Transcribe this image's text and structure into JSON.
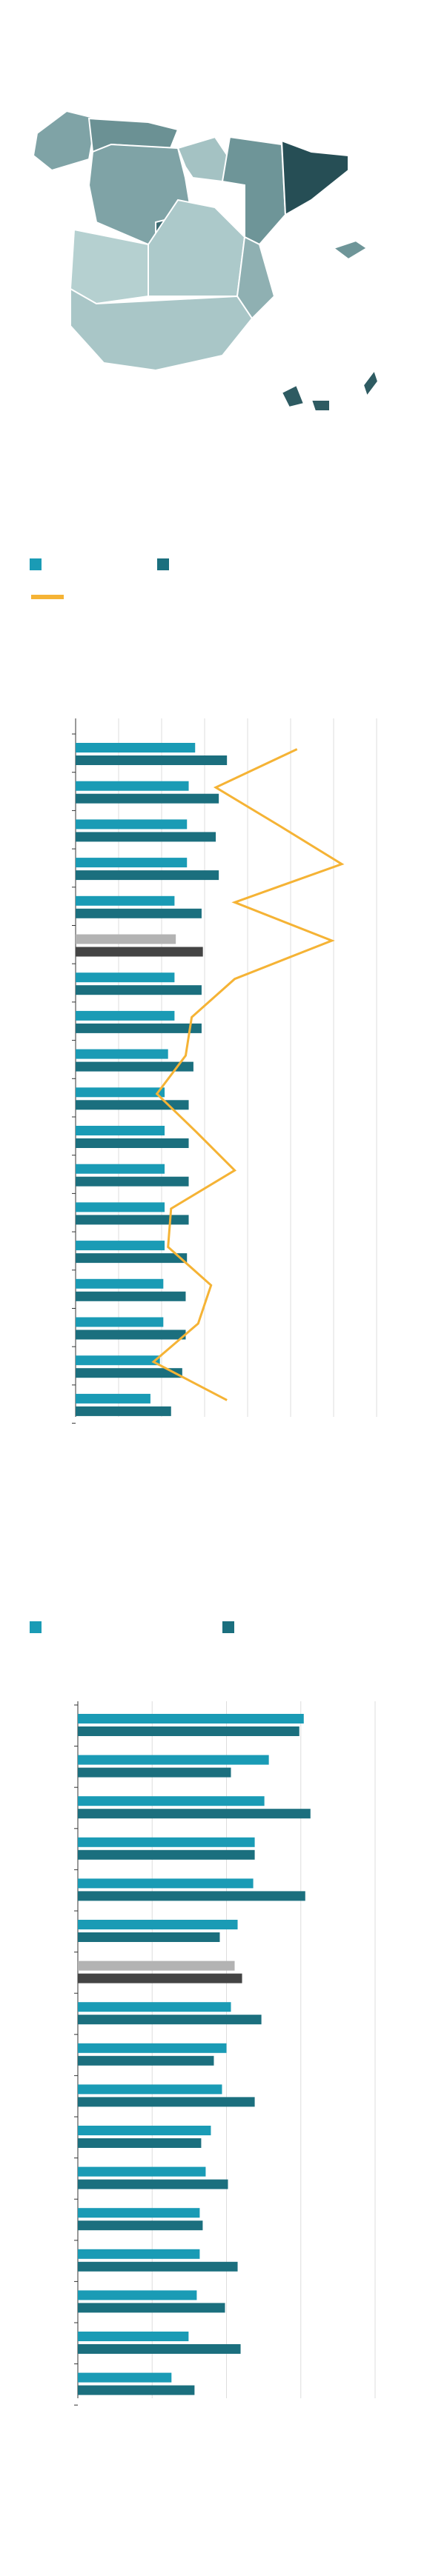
{
  "chart_data": [
    {
      "type": "bar",
      "orientation": "horizontal",
      "grid": true,
      "xlim": [
        0,
        7
      ],
      "xticks": [
        0,
        1,
        2,
        3,
        4,
        5,
        6,
        7
      ],
      "highlight_index": 5,
      "highlight_colors": [
        "#b3b3b3",
        "#444444"
      ],
      "series": [
        {
          "color": "#1a9bb5",
          "values": [
            2.78,
            2.63,
            2.59,
            2.59,
            2.3,
            2.33,
            2.3,
            2.3,
            2.15,
            2.07,
            2.07,
            2.07,
            2.07,
            2.07,
            2.04,
            2.04,
            1.96,
            1.74
          ]
        },
        {
          "color": "#1b6f7e",
          "values": [
            3.52,
            3.33,
            3.26,
            3.33,
            2.93,
            2.96,
            2.93,
            2.93,
            2.74,
            2.63,
            2.63,
            2.63,
            2.63,
            2.59,
            2.56,
            2.56,
            2.48,
            2.22
          ]
        },
        {
          "type": "line",
          "color": "#f5b335",
          "values": [
            5.15,
            3.26,
            4.74,
            6.19,
            3.7,
            5.96,
            3.7,
            2.7,
            2.56,
            1.89,
            2.81,
            3.7,
            2.22,
            2.15,
            3.15,
            2.85,
            1.81,
            3.52
          ]
        }
      ]
    },
    {
      "type": "bar",
      "orientation": "horizontal",
      "grid": true,
      "xlim": [
        0,
        4
      ],
      "xticks": [
        0,
        1,
        2,
        3,
        4
      ],
      "highlight_index": 6,
      "highlight_colors": [
        "#b3b3b3",
        "#444444"
      ],
      "series": [
        {
          "color": "#1a9bb5",
          "values": [
            3.04,
            2.57,
            2.51,
            2.38,
            2.36,
            2.15,
            2.11,
            2.06,
            2.0,
            1.94,
            1.79,
            1.72,
            1.64,
            1.64,
            1.6,
            1.49,
            1.26
          ]
        },
        {
          "color": "#1b6f7e",
          "values": [
            2.98,
            2.06,
            3.13,
            2.38,
            3.06,
            1.91,
            2.21,
            2.47,
            1.83,
            2.38,
            1.66,
            2.02,
            1.68,
            2.15,
            1.98,
            2.19,
            1.57
          ]
        }
      ]
    }
  ]
}
